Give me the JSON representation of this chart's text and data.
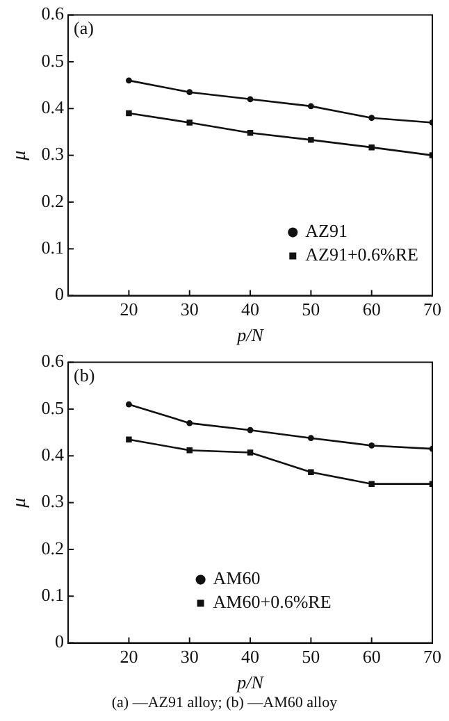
{
  "chart_data": [
    {
      "type": "line",
      "title": "(a)",
      "xlabel": "p/N",
      "ylabel": "μ",
      "x": [
        20,
        30,
        40,
        50,
        60,
        70
      ],
      "xlim": [
        10,
        70
      ],
      "xticks": [
        20,
        30,
        40,
        50,
        60,
        70
      ],
      "ylim": [
        0,
        0.6
      ],
      "yticks": [
        0,
        0.1,
        0.2,
        0.3,
        0.4,
        0.5,
        0.6
      ],
      "grid": false,
      "legend": "bottom right",
      "series": [
        {
          "name": "AZ91",
          "color": "#111111",
          "marker": "circle",
          "values": [
            0.46,
            0.435,
            0.42,
            0.405,
            0.38,
            0.37
          ]
        },
        {
          "name": "AZ91+0.6%RE",
          "color": "#111111",
          "marker": "square",
          "values": [
            0.39,
            0.37,
            0.348,
            0.333,
            0.317,
            0.3
          ]
        }
      ]
    },
    {
      "type": "line",
      "title": "(b)",
      "xlabel": "p/N",
      "ylabel": "μ",
      "x": [
        20,
        30,
        40,
        50,
        60,
        70
      ],
      "xlim": [
        10,
        70
      ],
      "xticks": [
        20,
        30,
        40,
        50,
        60,
        70
      ],
      "ylim": [
        0,
        0.6
      ],
      "yticks": [
        0,
        0.1,
        0.2,
        0.3,
        0.4,
        0.5,
        0.6
      ],
      "grid": false,
      "legend": "bottom",
      "annotations": [
        "(a) —AZ91 alloy; (b) —AM60 alloy"
      ],
      "series": [
        {
          "name": "AM60",
          "color": "#111111",
          "marker": "circle",
          "values": [
            0.51,
            0.47,
            0.455,
            0.438,
            0.422,
            0.415
          ]
        },
        {
          "name": "AM60+0.6%RE",
          "color": "#111111",
          "marker": "square",
          "values": [
            0.435,
            0.412,
            0.407,
            0.365,
            0.34,
            0.34
          ]
        }
      ]
    }
  ]
}
